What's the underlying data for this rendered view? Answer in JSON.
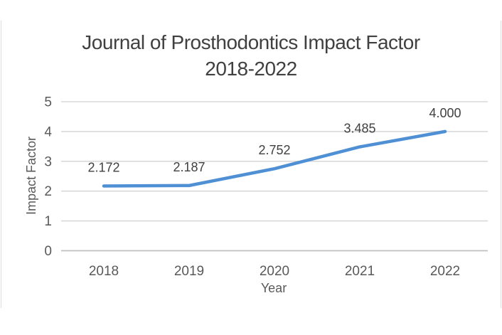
{
  "frame": {
    "border_color": "#dcdcdc",
    "background": "#ffffff"
  },
  "chart_data": {
    "type": "line",
    "title": "Journal of Prosthodontics Impact Factor 2018-2022",
    "title_lines": [
      "Journal of Prosthodontics Impact Factor",
      "2018-2022"
    ],
    "xlabel": "Year",
    "ylabel": "Impact Factor",
    "categories": [
      "2018",
      "2019",
      "2020",
      "2021",
      "2022"
    ],
    "values": [
      2.172,
      2.187,
      2.752,
      3.485,
      4.0
    ],
    "data_labels": [
      "2.172",
      "2.187",
      "2.752",
      "3.485",
      "4.000"
    ],
    "ylim": [
      0,
      5
    ],
    "ytick_step": 1,
    "yticks": [
      "0",
      "1",
      "2",
      "3",
      "4",
      "5"
    ],
    "grid": true,
    "legend": "none",
    "line_color": "#4f90d5",
    "line_width": 4.5,
    "data_label_color": "#404040",
    "tick_color": "#595959",
    "title_color": "#404040",
    "gridline_color": "#d9d9d9",
    "axis_line_color": "#bfbfbf"
  }
}
